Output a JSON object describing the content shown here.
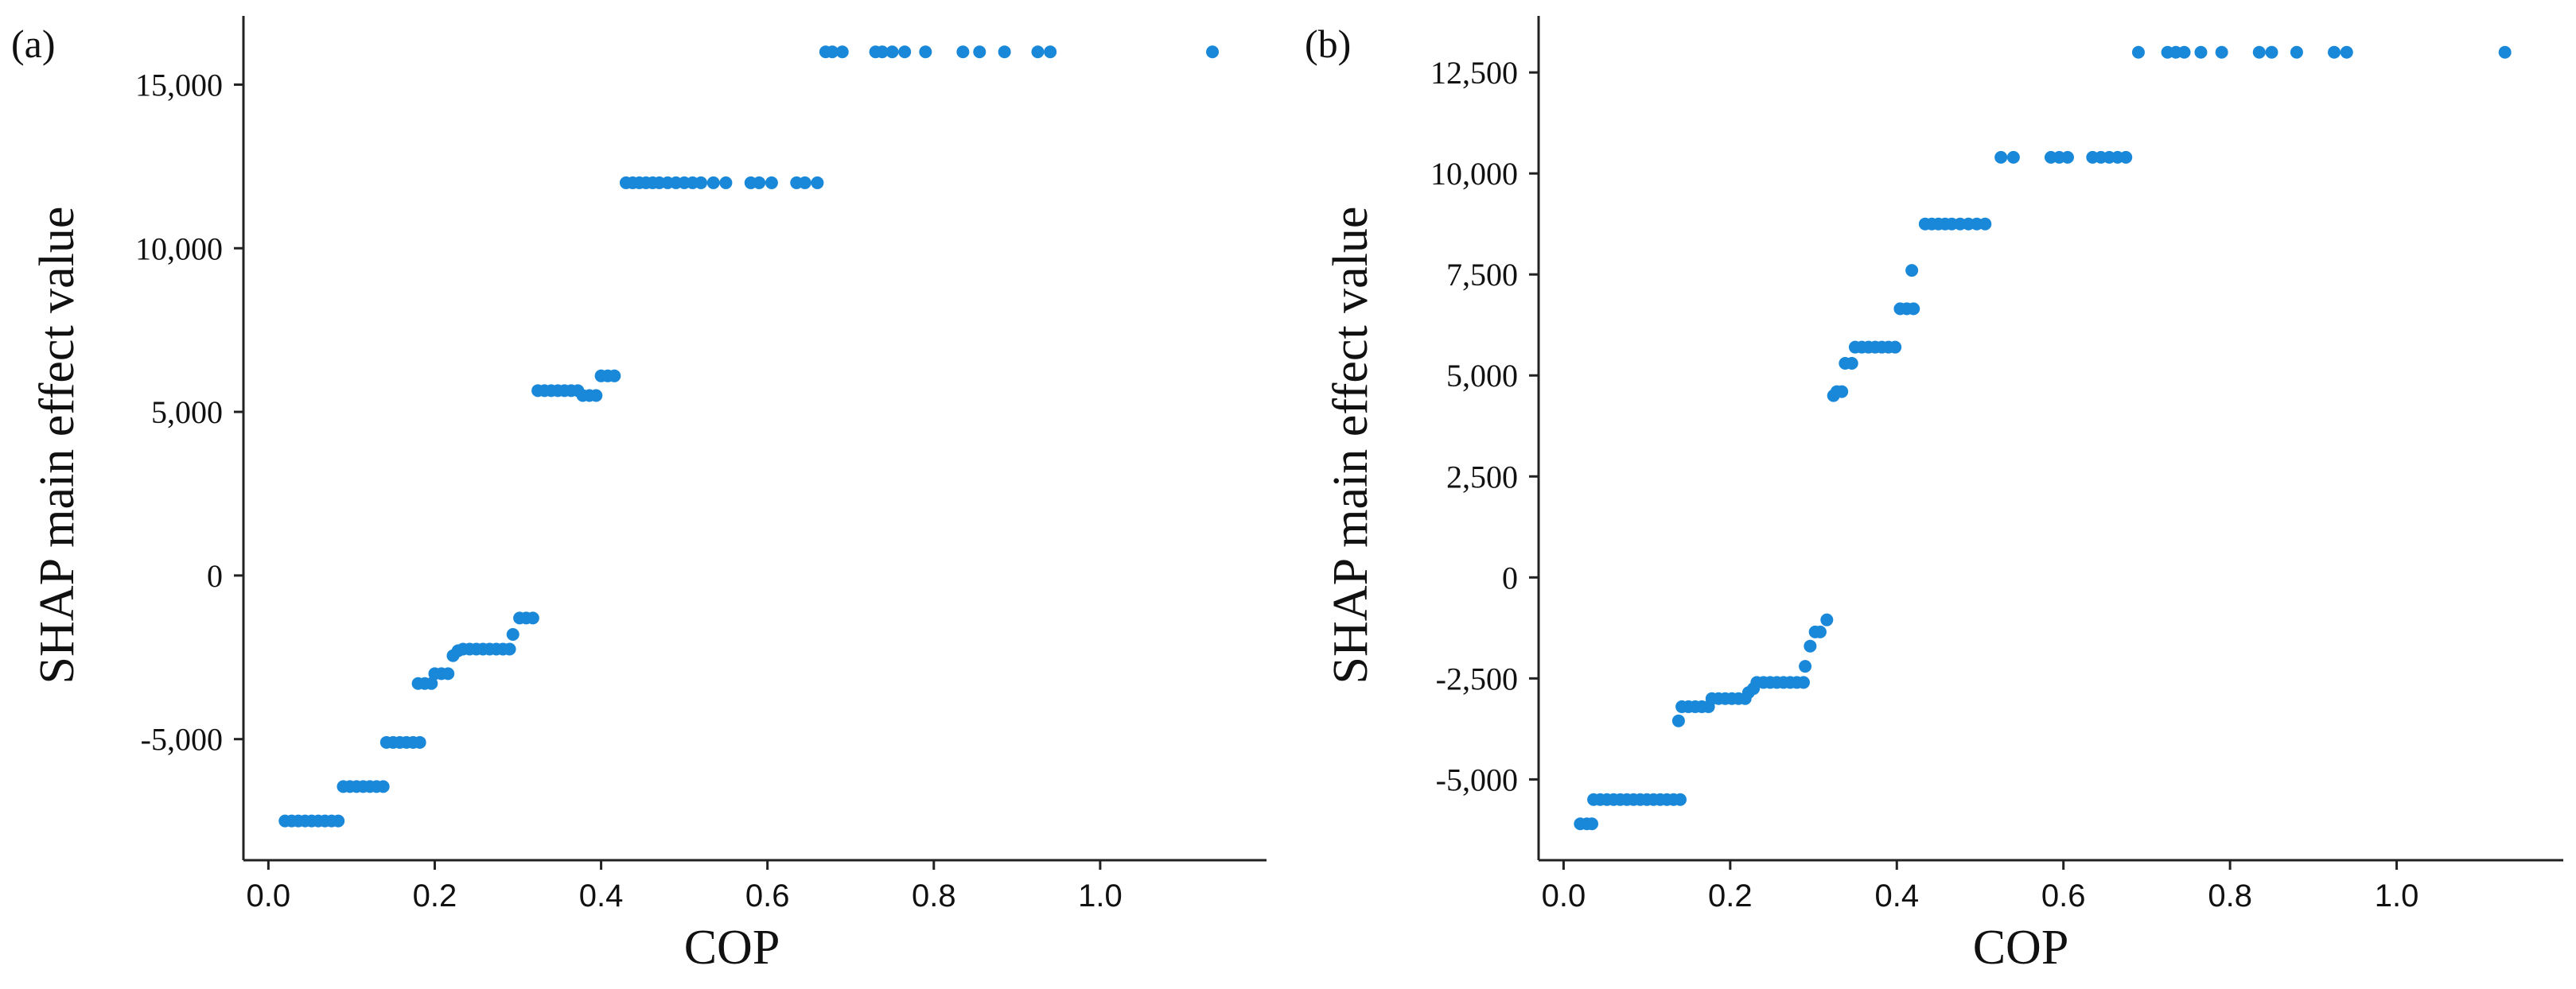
{
  "chart_data": [
    {
      "panel_label": "(a)",
      "type": "scatter",
      "xlabel": "COP",
      "ylabel": "SHAP main effect value",
      "xlim": [
        -0.03,
        1.2
      ],
      "ylim": [
        -8700,
        17100
      ],
      "xticks": [
        0.0,
        0.2,
        0.4,
        0.6,
        0.8,
        1.0
      ],
      "xtick_labels": [
        "0.0",
        "0.2",
        "0.4",
        "0.6",
        "0.8",
        "1.0"
      ],
      "yticks": [
        -5000,
        0,
        5000,
        10000,
        15000
      ],
      "ytick_labels": [
        "-5,000",
        "0",
        "5,000",
        "10,000",
        "15,000"
      ],
      "color": "#1a88d9",
      "points": [
        [
          0.02,
          -7500
        ],
        [
          0.028,
          -7500
        ],
        [
          0.036,
          -7500
        ],
        [
          0.044,
          -7500
        ],
        [
          0.052,
          -7500
        ],
        [
          0.06,
          -7500
        ],
        [
          0.068,
          -7500
        ],
        [
          0.076,
          -7500
        ],
        [
          0.084,
          -7500
        ],
        [
          0.09,
          -6450
        ],
        [
          0.098,
          -6450
        ],
        [
          0.106,
          -6450
        ],
        [
          0.114,
          -6450
        ],
        [
          0.122,
          -6450
        ],
        [
          0.13,
          -6450
        ],
        [
          0.138,
          -6450
        ],
        [
          0.142,
          -5100
        ],
        [
          0.15,
          -5100
        ],
        [
          0.158,
          -5100
        ],
        [
          0.166,
          -5100
        ],
        [
          0.174,
          -5100
        ],
        [
          0.182,
          -5100
        ],
        [
          0.18,
          -3300
        ],
        [
          0.188,
          -3300
        ],
        [
          0.196,
          -3300
        ],
        [
          0.2,
          -3000
        ],
        [
          0.208,
          -3000
        ],
        [
          0.216,
          -3000
        ],
        [
          0.222,
          -2450
        ],
        [
          0.228,
          -2300
        ],
        [
          0.234,
          -2250
        ],
        [
          0.242,
          -2250
        ],
        [
          0.25,
          -2250
        ],
        [
          0.258,
          -2250
        ],
        [
          0.266,
          -2250
        ],
        [
          0.274,
          -2250
        ],
        [
          0.282,
          -2250
        ],
        [
          0.29,
          -2250
        ],
        [
          0.294,
          -1800
        ],
        [
          0.302,
          -1300
        ],
        [
          0.31,
          -1300
        ],
        [
          0.318,
          -1300
        ],
        [
          0.324,
          5650
        ],
        [
          0.332,
          5650
        ],
        [
          0.34,
          5650
        ],
        [
          0.348,
          5650
        ],
        [
          0.356,
          5650
        ],
        [
          0.364,
          5650
        ],
        [
          0.372,
          5650
        ],
        [
          0.378,
          5500
        ],
        [
          0.386,
          5500
        ],
        [
          0.394,
          5500
        ],
        [
          0.4,
          6100
        ],
        [
          0.408,
          6100
        ],
        [
          0.416,
          6100
        ],
        [
          0.43,
          12000
        ],
        [
          0.438,
          12000
        ],
        [
          0.446,
          12000
        ],
        [
          0.454,
          12000
        ],
        [
          0.462,
          12000
        ],
        [
          0.47,
          12000
        ],
        [
          0.48,
          12000
        ],
        [
          0.49,
          12000
        ],
        [
          0.5,
          12000
        ],
        [
          0.51,
          12000
        ],
        [
          0.52,
          12000
        ],
        [
          0.535,
          12000
        ],
        [
          0.55,
          12000
        ],
        [
          0.58,
          12000
        ],
        [
          0.59,
          12000
        ],
        [
          0.605,
          12000
        ],
        [
          0.635,
          12000
        ],
        [
          0.645,
          12000
        ],
        [
          0.66,
          12000
        ],
        [
          0.67,
          16000
        ],
        [
          0.678,
          16000
        ],
        [
          0.69,
          16000
        ],
        [
          0.73,
          16000
        ],
        [
          0.738,
          16000
        ],
        [
          0.75,
          16000
        ],
        [
          0.765,
          16000
        ],
        [
          0.79,
          16000
        ],
        [
          0.835,
          16000
        ],
        [
          0.855,
          16000
        ],
        [
          0.885,
          16000
        ],
        [
          0.925,
          16000
        ],
        [
          0.94,
          16000
        ],
        [
          1.135,
          16000
        ]
      ]
    },
    {
      "panel_label": "(b)",
      "type": "scatter",
      "xlabel": "COP",
      "ylabel": "SHAP main effect value",
      "xlim": [
        -0.03,
        1.2
      ],
      "ylim": [
        -7000,
        13900
      ],
      "xticks": [
        0.0,
        0.2,
        0.4,
        0.6,
        0.8,
        1.0
      ],
      "xtick_labels": [
        "0.0",
        "0.2",
        "0.4",
        "0.6",
        "0.8",
        "1.0"
      ],
      "yticks": [
        -5000,
        -2500,
        0,
        2500,
        5000,
        7500,
        10000,
        12500
      ],
      "ytick_labels": [
        "-5,000",
        "-2,500",
        "0",
        "2,500",
        "5,000",
        "7,500",
        "10,000",
        "12,500"
      ],
      "color": "#1a88d9",
      "points": [
        [
          0.02,
          -6100
        ],
        [
          0.028,
          -6100
        ],
        [
          0.034,
          -6100
        ],
        [
          0.036,
          -5500
        ],
        [
          0.044,
          -5500
        ],
        [
          0.052,
          -5500
        ],
        [
          0.06,
          -5500
        ],
        [
          0.068,
          -5500
        ],
        [
          0.076,
          -5500
        ],
        [
          0.084,
          -5500
        ],
        [
          0.092,
          -5500
        ],
        [
          0.1,
          -5500
        ],
        [
          0.108,
          -5500
        ],
        [
          0.116,
          -5500
        ],
        [
          0.124,
          -5500
        ],
        [
          0.132,
          -5500
        ],
        [
          0.14,
          -5500
        ],
        [
          0.138,
          -3550
        ],
        [
          0.142,
          -3200
        ],
        [
          0.15,
          -3200
        ],
        [
          0.158,
          -3200
        ],
        [
          0.166,
          -3200
        ],
        [
          0.174,
          -3200
        ],
        [
          0.178,
          -3000
        ],
        [
          0.186,
          -3000
        ],
        [
          0.194,
          -3000
        ],
        [
          0.202,
          -3000
        ],
        [
          0.21,
          -3000
        ],
        [
          0.218,
          -3000
        ],
        [
          0.222,
          -2850
        ],
        [
          0.228,
          -2750
        ],
        [
          0.232,
          -2600
        ],
        [
          0.24,
          -2600
        ],
        [
          0.248,
          -2600
        ],
        [
          0.256,
          -2600
        ],
        [
          0.264,
          -2600
        ],
        [
          0.272,
          -2600
        ],
        [
          0.28,
          -2600
        ],
        [
          0.288,
          -2600
        ],
        [
          0.29,
          -2200
        ],
        [
          0.296,
          -1700
        ],
        [
          0.302,
          -1350
        ],
        [
          0.308,
          -1350
        ],
        [
          0.316,
          -1050
        ],
        [
          0.324,
          4500
        ],
        [
          0.328,
          4600
        ],
        [
          0.334,
          4600
        ],
        [
          0.338,
          5300
        ],
        [
          0.346,
          5300
        ],
        [
          0.35,
          5700
        ],
        [
          0.358,
          5700
        ],
        [
          0.366,
          5700
        ],
        [
          0.374,
          5700
        ],
        [
          0.382,
          5700
        ],
        [
          0.39,
          5700
        ],
        [
          0.398,
          5700
        ],
        [
          0.404,
          6650
        ],
        [
          0.412,
          6650
        ],
        [
          0.42,
          6650
        ],
        [
          0.418,
          7600
        ],
        [
          0.434,
          8750
        ],
        [
          0.442,
          8750
        ],
        [
          0.45,
          8750
        ],
        [
          0.458,
          8750
        ],
        [
          0.466,
          8750
        ],
        [
          0.476,
          8750
        ],
        [
          0.486,
          8750
        ],
        [
          0.496,
          8750
        ],
        [
          0.506,
          8750
        ],
        [
          0.525,
          10400
        ],
        [
          0.54,
          10400
        ],
        [
          0.585,
          10400
        ],
        [
          0.595,
          10400
        ],
        [
          0.605,
          10400
        ],
        [
          0.635,
          10400
        ],
        [
          0.645,
          10400
        ],
        [
          0.655,
          10400
        ],
        [
          0.665,
          10400
        ],
        [
          0.675,
          10400
        ],
        [
          0.69,
          13000
        ],
        [
          0.725,
          13000
        ],
        [
          0.735,
          13000
        ],
        [
          0.745,
          13000
        ],
        [
          0.765,
          13000
        ],
        [
          0.79,
          13000
        ],
        [
          0.835,
          13000
        ],
        [
          0.85,
          13000
        ],
        [
          0.88,
          13000
        ],
        [
          0.925,
          13000
        ],
        [
          0.94,
          13000
        ],
        [
          1.13,
          13000
        ]
      ]
    }
  ]
}
